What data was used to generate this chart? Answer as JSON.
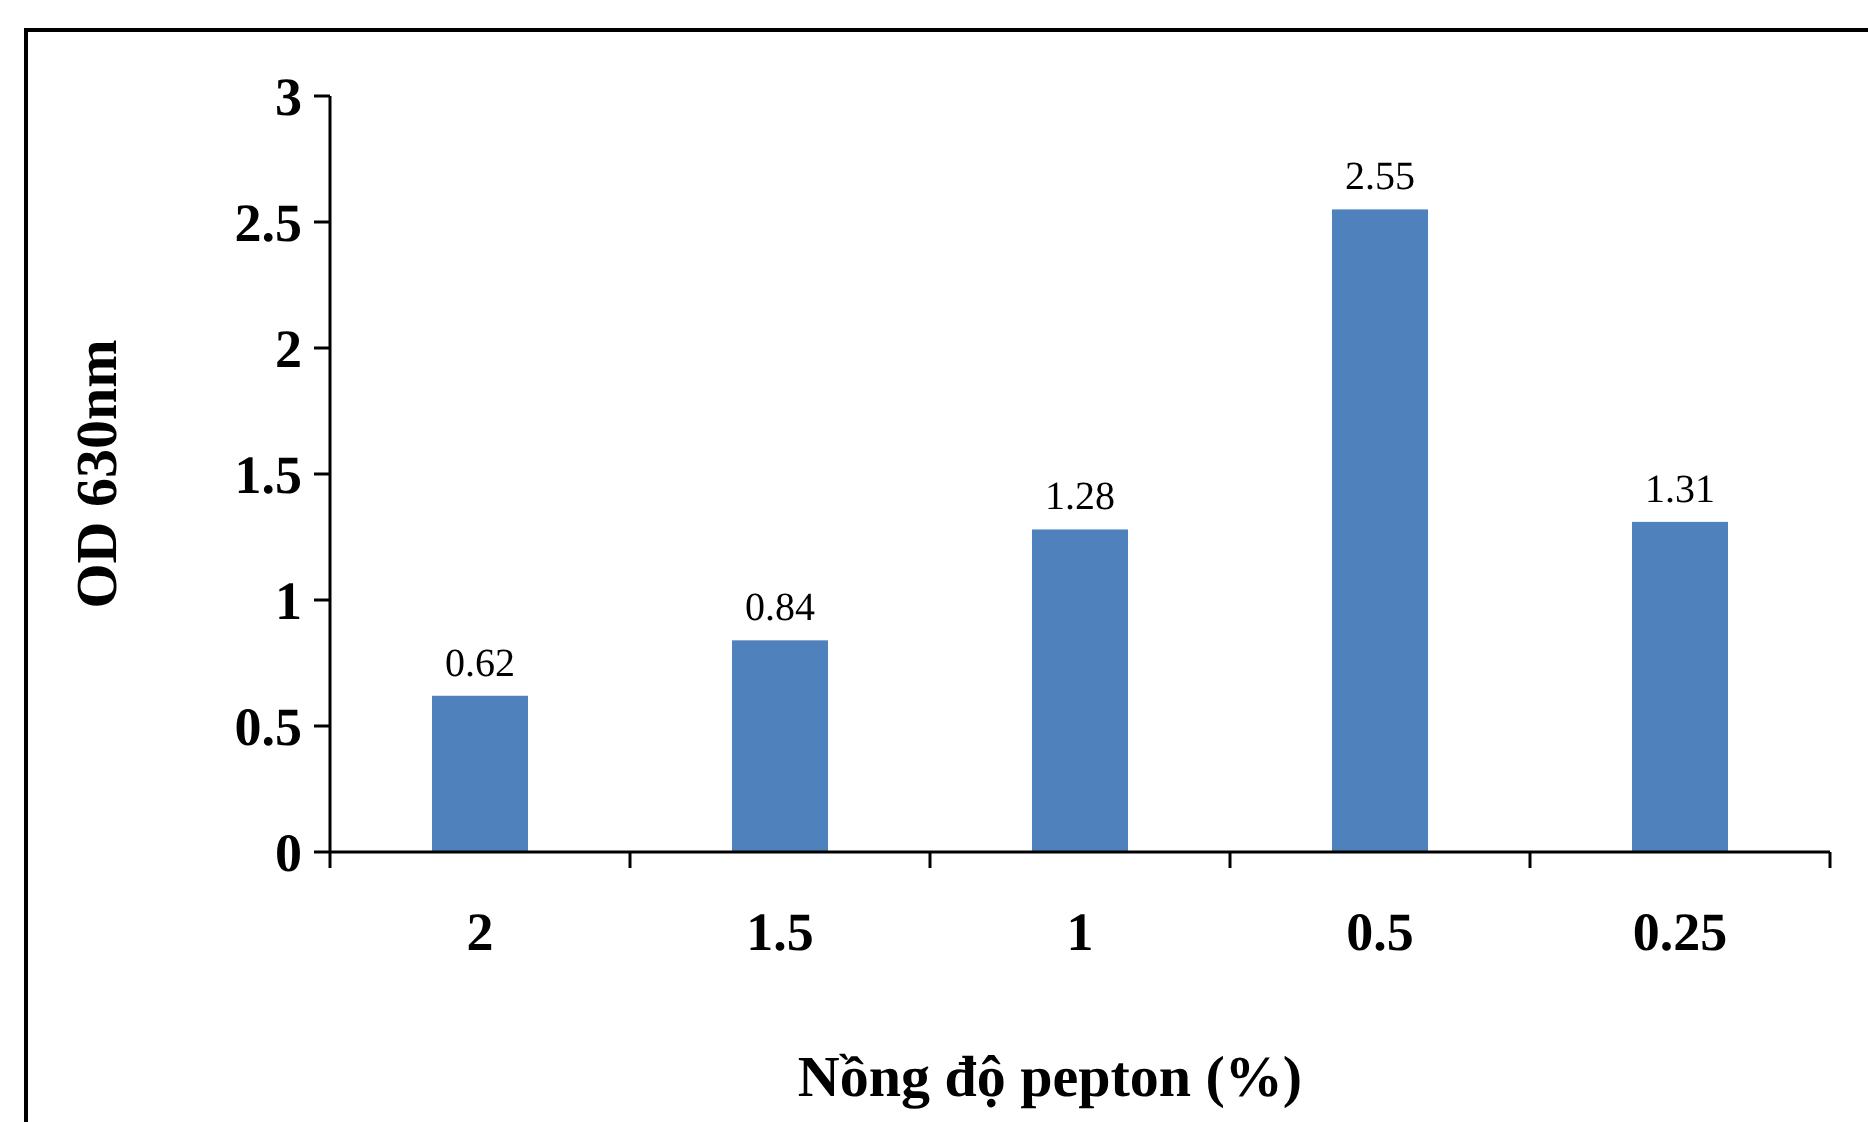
{
  "chart_data": {
    "type": "bar",
    "xlabel": "Nồng độ pepton (%)",
    "ylabel": "OD 630nm",
    "categories": [
      "2",
      "1.5",
      "1",
      "0.5",
      "0.25"
    ],
    "values": [
      0.62,
      0.84,
      1.28,
      2.55,
      1.31
    ],
    "color": "#4f81bd",
    "ylim": [
      0,
      3
    ],
    "yticks": [
      0,
      0.5,
      1,
      1.5,
      2,
      2.5,
      3
    ],
    "data_labels": true
  }
}
